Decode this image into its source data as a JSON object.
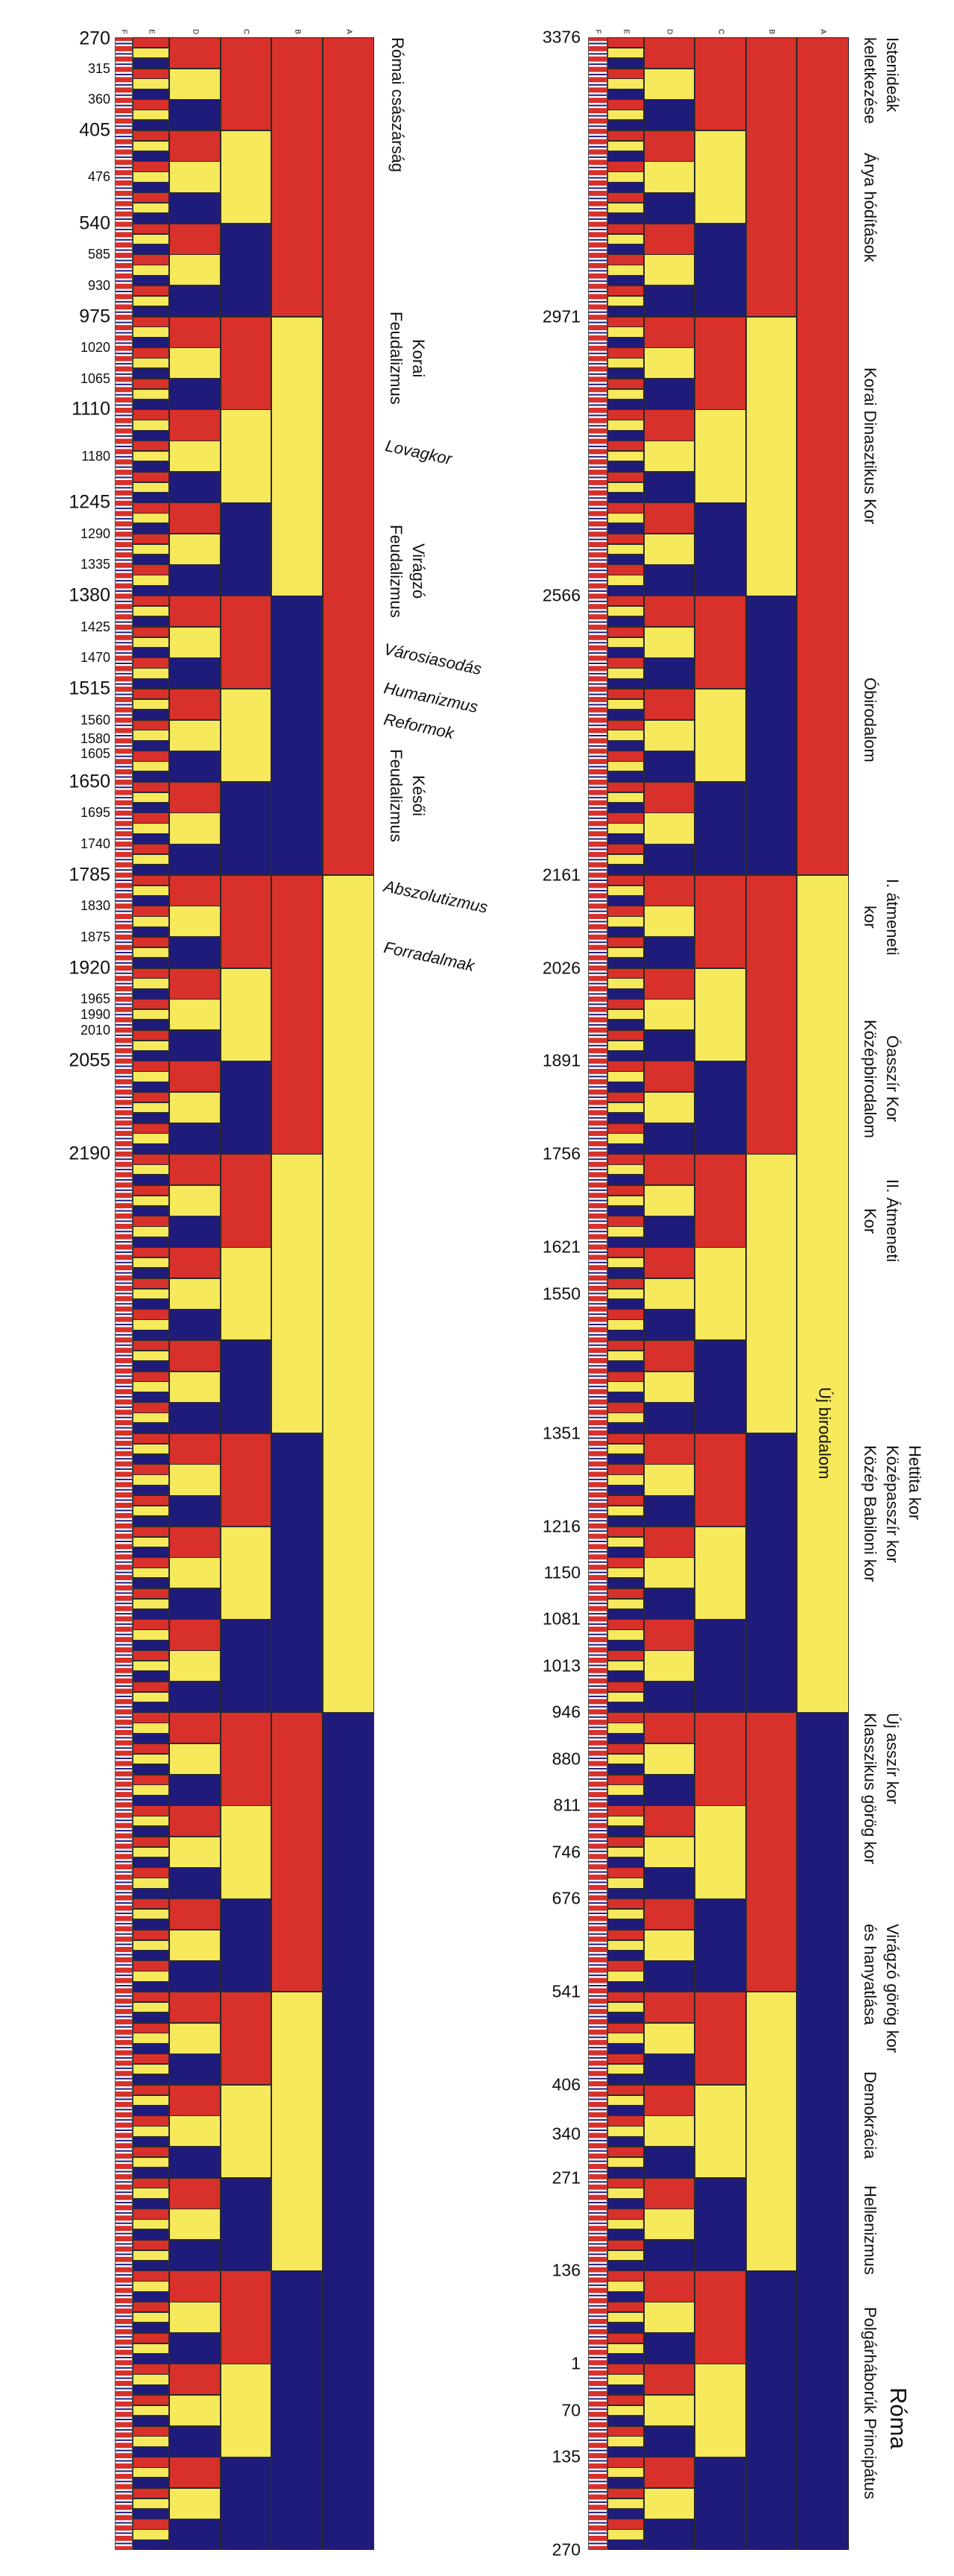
{
  "columns": [
    "F",
    "E",
    "D",
    "C",
    "B",
    "A"
  ],
  "colors": {
    "red": "#d8302a",
    "yellow": "#f6e95c",
    "blue": "#1f1b7a",
    "white": "#ffffff"
  },
  "left_panel": {
    "years": [
      "270",
      "315",
      "360",
      "405",
      "476",
      "540",
      "585",
      "930",
      "975",
      "1020",
      "1065",
      "1110",
      "1180",
      "1245",
      "1290",
      "1335",
      "1380",
      "1425",
      "1470",
      "1515",
      "1560",
      "1580",
      "1605",
      "1650",
      "1695",
      "1740",
      "1785",
      "1830",
      "1875",
      "1920",
      "1965",
      "1990",
      "2010",
      "2055",
      "2190"
    ],
    "periods": [
      {
        "lines": [
          "Római császárság"
        ]
      },
      {
        "lines": [
          "Korai",
          "Feudalizmus"
        ]
      },
      {
        "lines": [
          "Lovagkor"
        ]
      },
      {
        "lines": [
          "Virágzó",
          "Feudalizmus"
        ]
      },
      {
        "lines": [
          "Városiasodás"
        ]
      },
      {
        "lines": [
          "Humanizmus"
        ]
      },
      {
        "lines": [
          "Reformok"
        ]
      },
      {
        "lines": [
          "Késői",
          "Feudalizmus"
        ]
      },
      {
        "lines": [
          "Abszolutizmus"
        ]
      },
      {
        "lines": [
          "Forradalmak"
        ]
      }
    ]
  },
  "right_panel": {
    "years": [
      "3376",
      "2971",
      "2566",
      "2161",
      "2026",
      "1891",
      "1756",
      "1621",
      "1550",
      "1351",
      "1216",
      "1150",
      "1081",
      "1013",
      "946",
      "880",
      "811",
      "746",
      "676",
      "541",
      "406",
      "340",
      "271",
      "136",
      "1",
      "70",
      "135",
      "270"
    ],
    "periods": [
      {
        "lines": [
          "Istenideák",
          "keletkezése"
        ]
      },
      {
        "lines": [
          "Árya hódítások"
        ]
      },
      {
        "lines": [
          "Korai Dinasztikus Kor"
        ]
      },
      {
        "lines": [
          "Óbirodalom"
        ]
      },
      {
        "lines": [
          "I. átmeneti",
          "kor"
        ]
      },
      {
        "lines": [
          "Óasszír Kor",
          "Középbirodalom"
        ]
      },
      {
        "lines": [
          "II. Átmeneti",
          "Kor"
        ]
      },
      {
        "lines": [
          "Új birodalom"
        ]
      },
      {
        "lines": [
          "Hettita kor",
          "Középasszír kor",
          "Közép Babiloni kor"
        ]
      },
      {
        "lines": [
          "Új asszír kor",
          "Klasszikus görög kor"
        ]
      },
      {
        "lines": [
          "Virágzó görög kor",
          "és hanyatlása"
        ]
      },
      {
        "lines": [
          "Demokrácia"
        ]
      },
      {
        "lines": [
          "Hellenizmus"
        ]
      },
      {
        "lines": [
          "Polgárháborúk Principátus"
        ]
      },
      {
        "lines": [
          "Róma"
        ]
      }
    ]
  }
}
